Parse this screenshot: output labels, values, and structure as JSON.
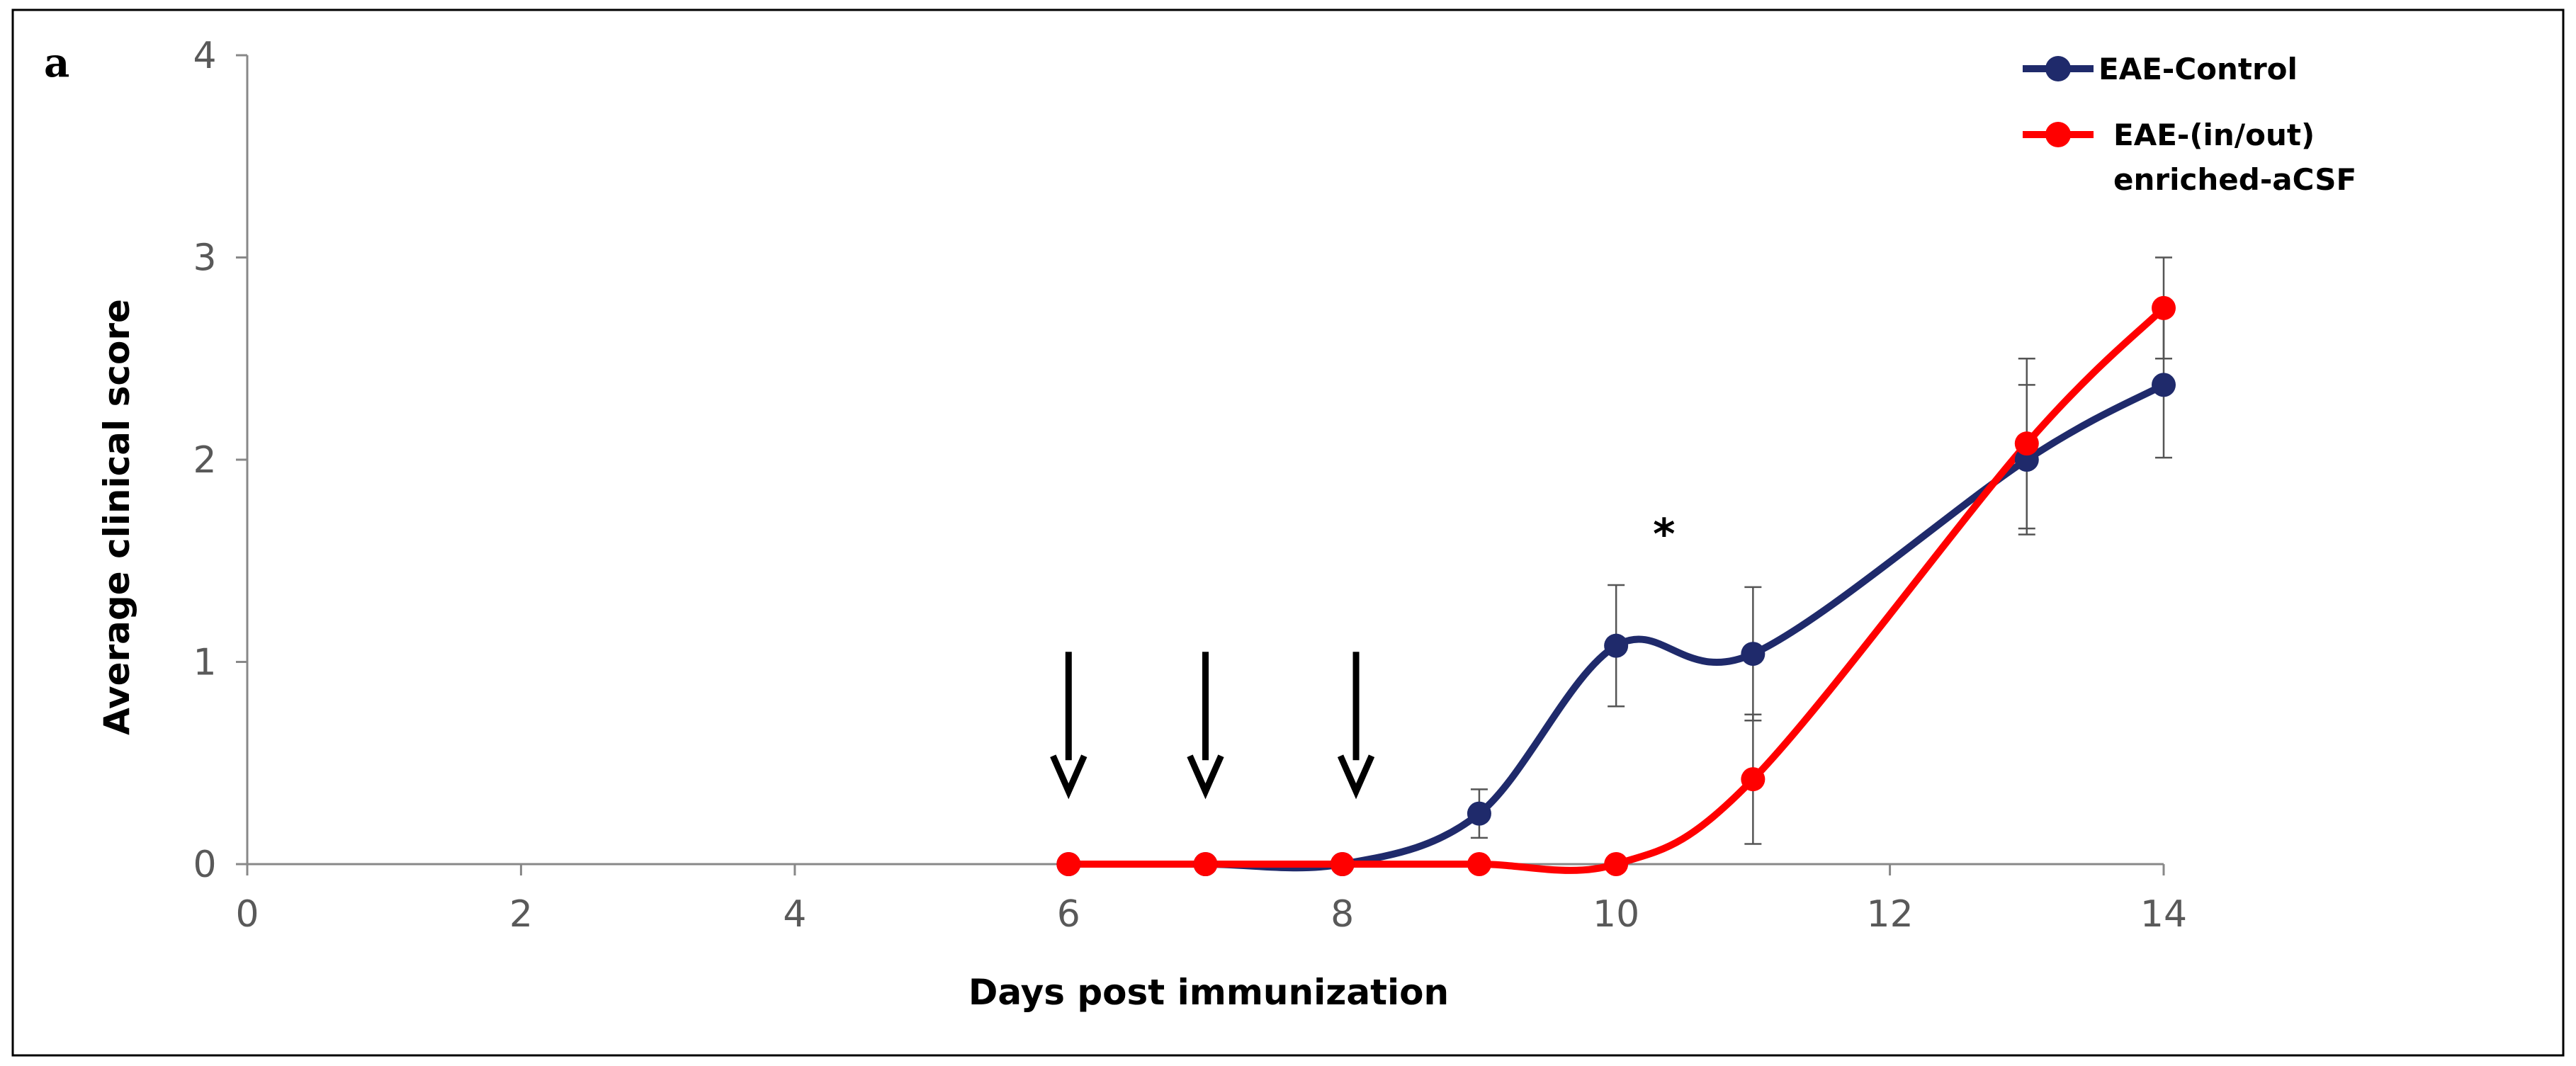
{
  "chart_data": {
    "type": "line",
    "panel_label": "a",
    "xlabel": "Days post immunization",
    "ylabel": "Average clinical score",
    "xlim": [
      0,
      14
    ],
    "ylim": [
      0,
      4
    ],
    "xticks": [
      0,
      2,
      4,
      6,
      8,
      10,
      12,
      14
    ],
    "yticks": [
      0,
      1,
      2,
      3,
      4
    ],
    "grid": false,
    "legend_position": "top-right",
    "series": [
      {
        "name": "EAE-Control",
        "color": "#1F2A6B",
        "smooth": true,
        "x": [
          6,
          7,
          8,
          9,
          10,
          11,
          13,
          14
        ],
        "values": [
          0,
          0,
          0,
          0.25,
          1.08,
          1.04,
          2.0,
          2.37
        ],
        "errors": [
          0,
          0,
          0,
          0.12,
          0.3,
          0.33,
          0.37,
          0.36
        ]
      },
      {
        "name": "EAE-(in/out) enriched-aCSF",
        "legend_lines": [
          "EAE-(in/out)",
          "enriched-aCSF"
        ],
        "color": "#FF0000",
        "smooth": true,
        "x": [
          6,
          7,
          8,
          9,
          10,
          11,
          13,
          14
        ],
        "values": [
          0,
          0,
          0,
          0,
          0,
          0.42,
          2.08,
          2.75
        ],
        "errors": [
          0,
          0,
          0,
          0,
          0,
          0.32,
          0.42,
          0.25
        ]
      }
    ],
    "annotations": {
      "arrows_at_x": [
        6,
        7,
        8.1
      ],
      "asterisk": {
        "text": "*",
        "x": 10.35,
        "y": 1.7
      }
    }
  }
}
